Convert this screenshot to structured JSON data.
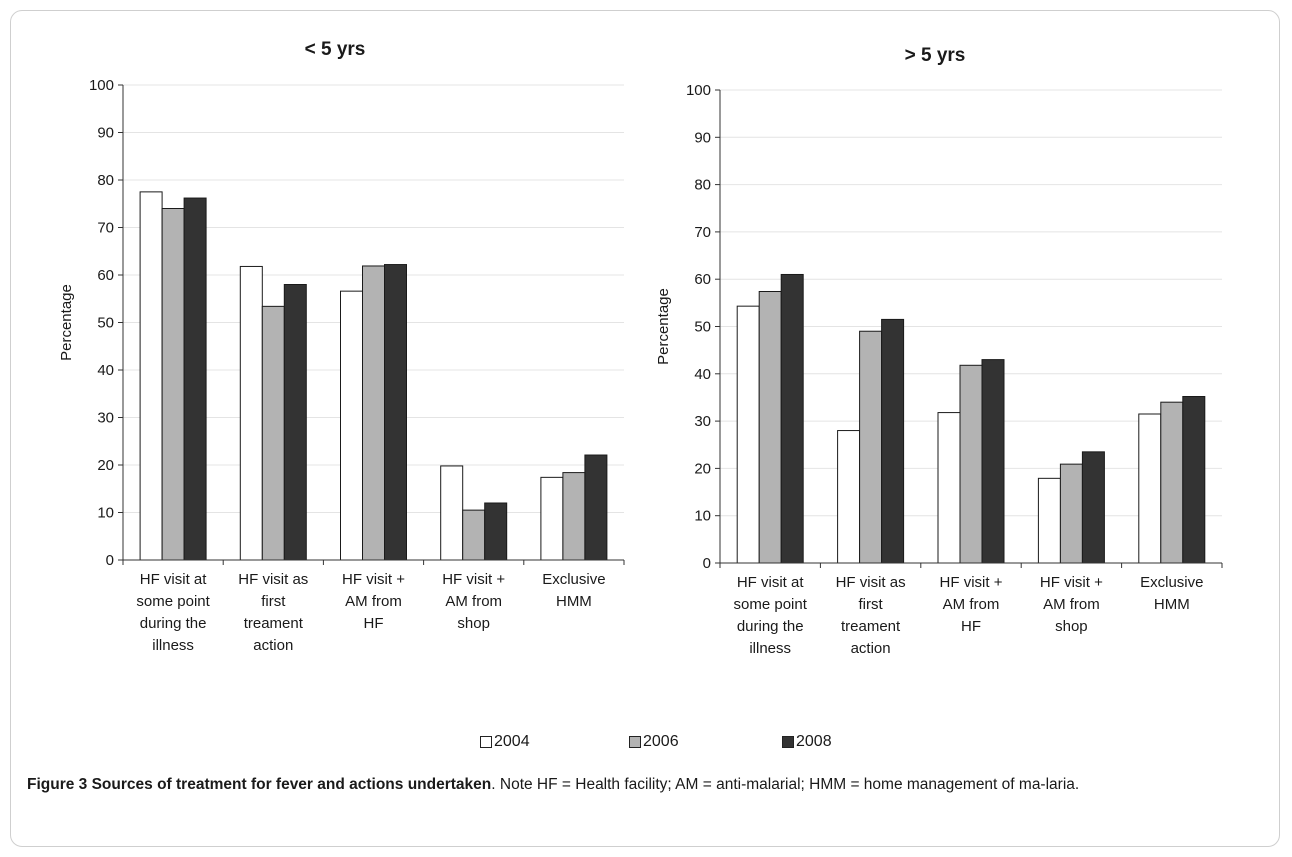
{
  "figure": {
    "label": "Figure 3 Sources of treatment for fever and actions undertaken",
    "caption": ". Note HF = Health facility; AM = anti-malarial; HMM = home management of ma-laria."
  },
  "legend": [
    {
      "name": "2004",
      "color": "#ffffff"
    },
    {
      "name": "2006",
      "color": "#b3b3b3"
    },
    {
      "name": "2008",
      "color": "#333333"
    }
  ],
  "chart_data": [
    {
      "type": "bar",
      "title": "< 5 yrs",
      "ylabel": "Percentage",
      "ylim": [
        0,
        100
      ],
      "yticks": [
        0,
        10,
        20,
        30,
        40,
        50,
        60,
        70,
        80,
        90,
        100
      ],
      "grid": true,
      "categories": [
        [
          "HF visit at",
          "some point",
          "during the",
          "illness"
        ],
        [
          "HF visit as",
          "first",
          "treament",
          "action"
        ],
        [
          "HF visit +",
          "AM from",
          "HF"
        ],
        [
          "HF visit +",
          "AM from",
          "shop"
        ],
        [
          "Exclusive",
          "HMM"
        ]
      ],
      "series": [
        {
          "name": "2004",
          "color": "#ffffff",
          "values": [
            77.5,
            61.8,
            56.6,
            19.8,
            17.4
          ]
        },
        {
          "name": "2006",
          "color": "#b3b3b3",
          "values": [
            74.0,
            53.4,
            61.9,
            10.5,
            18.4
          ]
        },
        {
          "name": "2008",
          "color": "#333333",
          "values": [
            76.2,
            58.0,
            62.2,
            12.0,
            22.1
          ]
        }
      ]
    },
    {
      "type": "bar",
      "title": "> 5 yrs",
      "ylabel": "Percentage",
      "ylim": [
        0,
        100
      ],
      "yticks": [
        0,
        10,
        20,
        30,
        40,
        50,
        60,
        70,
        80,
        90,
        100
      ],
      "grid": true,
      "categories": [
        [
          "HF visit at",
          "some point",
          "during the",
          "illness"
        ],
        [
          "HF visit as",
          "first",
          "treament",
          "action"
        ],
        [
          "HF visit +",
          "AM from",
          "HF"
        ],
        [
          "HF visit +",
          "AM from",
          "shop"
        ],
        [
          "Exclusive",
          "HMM"
        ]
      ],
      "series": [
        {
          "name": "2004",
          "color": "#ffffff",
          "values": [
            54.3,
            28.0,
            31.8,
            17.9,
            31.5
          ]
        },
        {
          "name": "2006",
          "color": "#b3b3b3",
          "values": [
            57.4,
            49.0,
            41.8,
            20.9,
            34.0
          ]
        },
        {
          "name": "2008",
          "color": "#333333",
          "values": [
            61.0,
            51.5,
            43.0,
            23.5,
            35.2
          ]
        }
      ]
    }
  ]
}
